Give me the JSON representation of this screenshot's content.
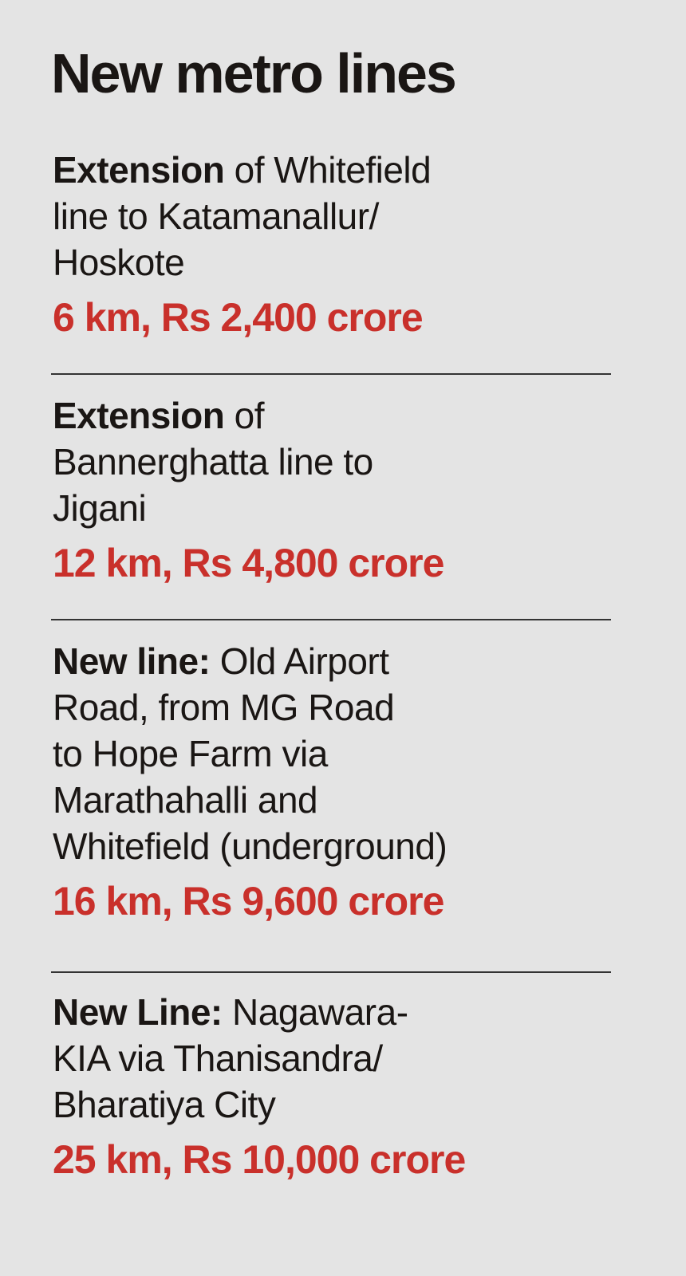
{
  "title": "New metro lines",
  "colors": {
    "background": "#e4e4e4",
    "cost": "#c9302b",
    "text": "#1a1614"
  },
  "items": [
    {
      "bold": "Extension",
      "first_rest": " of Whitefield",
      "lines": [
        "line to Katamanallur/",
        "Hoskote"
      ],
      "cost": "6 km, Rs 2,400 crore"
    },
    {
      "bold": "Extension",
      "first_rest": " of",
      "lines": [
        "Bannerghatta line to",
        "Jigani"
      ],
      "cost": "12 km, Rs 4,800 crore"
    },
    {
      "bold": "New line:",
      "first_rest": " Old Airport",
      "lines": [
        "Road, from MG Road",
        "to Hope Farm via",
        "Marathahalli and",
        "Whitefield (underground)"
      ],
      "cost": "16 km, Rs 9,600 crore"
    },
    {
      "bold": "New Line:",
      "first_rest": " Nagawara-",
      "lines": [
        "KIA via Thanisandra/",
        "Bharatiya City"
      ],
      "cost": "25 km, Rs 10,000 crore"
    }
  ]
}
